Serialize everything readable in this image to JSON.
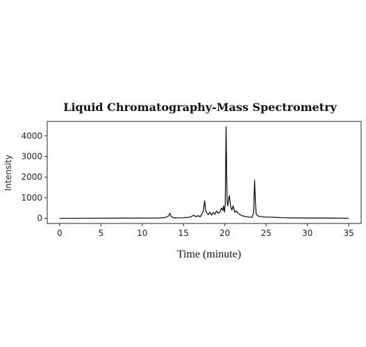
{
  "chart_data": {
    "type": "line",
    "title": "Liquid Chromatography-Mass Spectrometry",
    "xlabel": "Time (minute)",
    "ylabel": "Intensity",
    "xlim": [
      -1.5,
      36.5
    ],
    "ylim": [
      -250,
      4700
    ],
    "xticks": [
      0,
      5,
      10,
      15,
      20,
      25,
      30,
      35
    ],
    "yticks": [
      0,
      1000,
      2000,
      3000,
      4000
    ],
    "grid": false,
    "series": [
      {
        "color": "#000000",
        "x": [
          0,
          3,
          8,
          12,
          12.8,
          13.0,
          13.2,
          13.35,
          13.5,
          13.7,
          14.0,
          15.0,
          15.8,
          16.0,
          16.2,
          16.5,
          16.8,
          17.0,
          17.2,
          17.4,
          17.55,
          17.65,
          17.75,
          17.85,
          18.0,
          18.2,
          18.4,
          18.6,
          18.8,
          19.0,
          19.2,
          19.4,
          19.6,
          19.75,
          19.85,
          19.95,
          20.05,
          20.15,
          20.22,
          20.28,
          20.35,
          20.45,
          20.55,
          20.65,
          20.75,
          20.85,
          21.0,
          21.2,
          21.4,
          21.6,
          21.8,
          22.0,
          22.3,
          22.6,
          23.0,
          23.3,
          23.5,
          23.6,
          23.7,
          23.8,
          23.9,
          24.1,
          24.4,
          24.8,
          25.3,
          26.0,
          27.0,
          28.0,
          30.0,
          33.0,
          35.0
        ],
        "y": [
          0,
          5,
          10,
          15,
          40,
          80,
          120,
          250,
          90,
          40,
          20,
          30,
          60,
          100,
          150,
          80,
          130,
          70,
          200,
          350,
          850,
          500,
          300,
          250,
          180,
          300,
          150,
          280,
          200,
          350,
          250,
          300,
          500,
          380,
          600,
          300,
          700,
          4450,
          2200,
          800,
          600,
          900,
          1100,
          700,
          500,
          400,
          600,
          300,
          350,
          250,
          180,
          150,
          100,
          80,
          60,
          50,
          300,
          1850,
          800,
          200,
          150,
          100,
          80,
          60,
          60,
          50,
          30,
          20,
          15,
          10,
          5
        ]
      }
    ]
  }
}
